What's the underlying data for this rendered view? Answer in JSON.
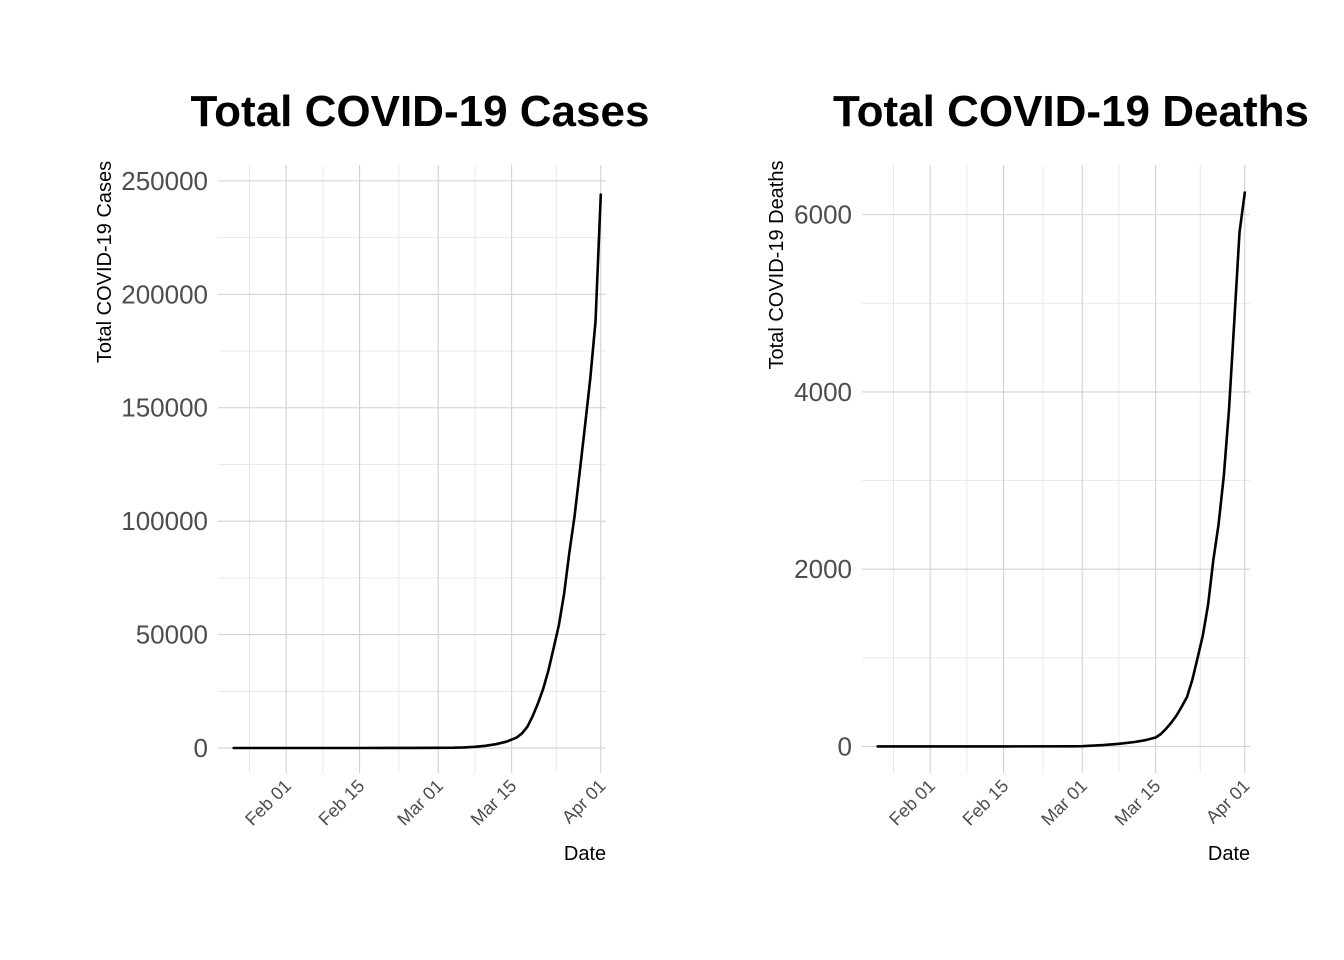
{
  "chart_data": [
    {
      "type": "line",
      "title": "Total COVID-19 Cases",
      "xlabel": "Date",
      "ylabel": "Total COVID-19 Cases",
      "x_type": "date",
      "xlim": [
        "2020-01-19",
        "2020-04-02"
      ],
      "x_ticks": [
        {
          "date": "2020-02-01",
          "label": "Feb 01"
        },
        {
          "date": "2020-02-15",
          "label": "Feb 15"
        },
        {
          "date": "2020-03-01",
          "label": "Mar 01"
        },
        {
          "date": "2020-03-15",
          "label": "Mar 15"
        },
        {
          "date": "2020-04-01",
          "label": "Apr 01"
        }
      ],
      "ylim": [
        -11000,
        257000
      ],
      "y_ticks": [
        0,
        50000,
        100000,
        150000,
        200000,
        250000
      ],
      "y_tick_labels": [
        "0",
        "50000",
        "100000",
        "150000",
        "200000",
        "250000"
      ],
      "grid": true,
      "series": [
        {
          "x": [
            "2020-01-22",
            "2020-02-01",
            "2020-02-15",
            "2020-02-25",
            "2020-03-01",
            "2020-03-04",
            "2020-03-06",
            "2020-03-08",
            "2020-03-10",
            "2020-03-12",
            "2020-03-14",
            "2020-03-16",
            "2020-03-17",
            "2020-03-18",
            "2020-03-19",
            "2020-03-20",
            "2020-03-21",
            "2020-03-22",
            "2020-03-23",
            "2020-03-24",
            "2020-03-25",
            "2020-03-26",
            "2020-03-27",
            "2020-03-28",
            "2020-03-29",
            "2020-03-30",
            "2020-03-31",
            "2020-04-01"
          ],
          "values": [
            1,
            8,
            15,
            60,
            90,
            150,
            300,
            550,
            1000,
            1700,
            2800,
            4700,
            6500,
            9400,
            14000,
            19500,
            26000,
            34000,
            44000,
            54000,
            68000,
            86000,
            102000,
            122000,
            142000,
            163000,
            188000,
            244000
          ]
        }
      ]
    },
    {
      "type": "line",
      "title": "Total COVID-19 Deaths",
      "xlabel": "Date",
      "ylabel": "Total COVID-19 Deaths",
      "x_type": "date",
      "xlim": [
        "2020-01-19",
        "2020-04-02"
      ],
      "x_ticks": [
        {
          "date": "2020-02-01",
          "label": "Feb 01"
        },
        {
          "date": "2020-02-15",
          "label": "Feb 15"
        },
        {
          "date": "2020-03-01",
          "label": "Mar 01"
        },
        {
          "date": "2020-03-15",
          "label": "Mar 15"
        },
        {
          "date": "2020-04-01",
          "label": "Apr 01"
        }
      ],
      "ylim": [
        -300,
        6560
      ],
      "y_ticks": [
        0,
        2000,
        4000,
        6000
      ],
      "y_tick_labels": [
        "0",
        "2000",
        "4000",
        "6000"
      ],
      "grid": true,
      "series": [
        {
          "x": [
            "2020-01-22",
            "2020-02-15",
            "2020-02-28",
            "2020-03-01",
            "2020-03-05",
            "2020-03-08",
            "2020-03-11",
            "2020-03-13",
            "2020-03-15",
            "2020-03-16",
            "2020-03-17",
            "2020-03-18",
            "2020-03-19",
            "2020-03-20",
            "2020-03-21",
            "2020-03-22",
            "2020-03-23",
            "2020-03-24",
            "2020-03-25",
            "2020-03-26",
            "2020-03-27",
            "2020-03-28",
            "2020-03-29",
            "2020-03-30",
            "2020-03-31",
            "2020-04-01"
          ],
          "values": [
            0,
            0,
            1,
            2,
            15,
            30,
            50,
            70,
            100,
            140,
            200,
            270,
            350,
            450,
            560,
            750,
            1000,
            1250,
            1600,
            2100,
            2500,
            3050,
            3800,
            4800,
            5800,
            6250
          ]
        }
      ]
    }
  ]
}
